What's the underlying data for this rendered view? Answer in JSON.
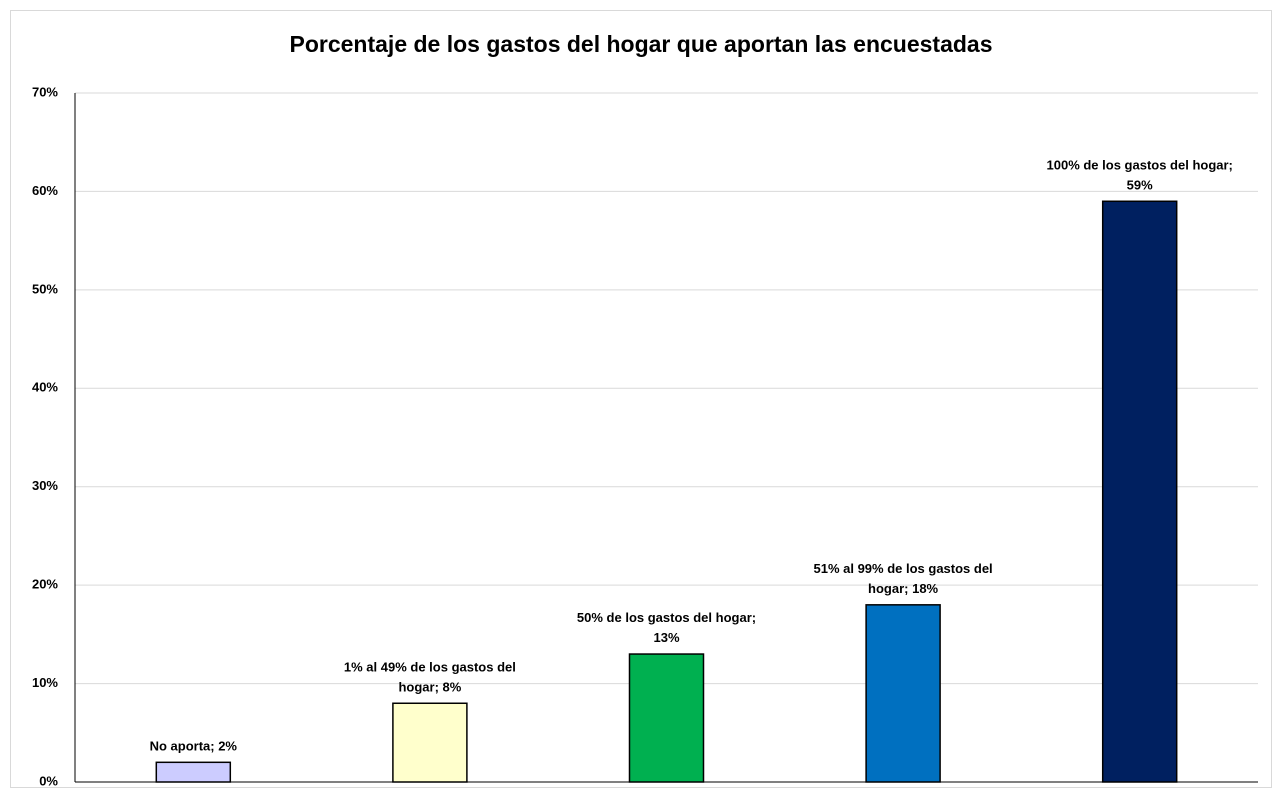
{
  "chart_data": {
    "type": "bar",
    "title": "Porcentaje de los gastos del hogar que aportan las encuestadas",
    "values": [
      2,
      8,
      13,
      18,
      59
    ],
    "value_labels": [
      "No aporta; 2%",
      "1% al 49% de los gastos del\nhogar; 8%",
      "50% de los gastos del hogar;\n13%",
      "51% al 99% de los gastos del\nhogar; 18%",
      "100% de los gastos del hogar;\n59%"
    ],
    "colors": [
      "#ccccff",
      "#ffffcc",
      "#00b050",
      "#0070c0",
      "#002060"
    ],
    "ylim": [
      0,
      70
    ],
    "yticks": [
      {
        "value": 0,
        "label": "0%"
      },
      {
        "value": 10,
        "label": "10%"
      },
      {
        "value": 20,
        "label": "20%"
      },
      {
        "value": 30,
        "label": "30%"
      },
      {
        "value": 40,
        "label": "40%"
      },
      {
        "value": 50,
        "label": "50%"
      },
      {
        "value": 60,
        "label": "60%"
      },
      {
        "value": 70,
        "label": "70%"
      }
    ],
    "grid": true
  }
}
